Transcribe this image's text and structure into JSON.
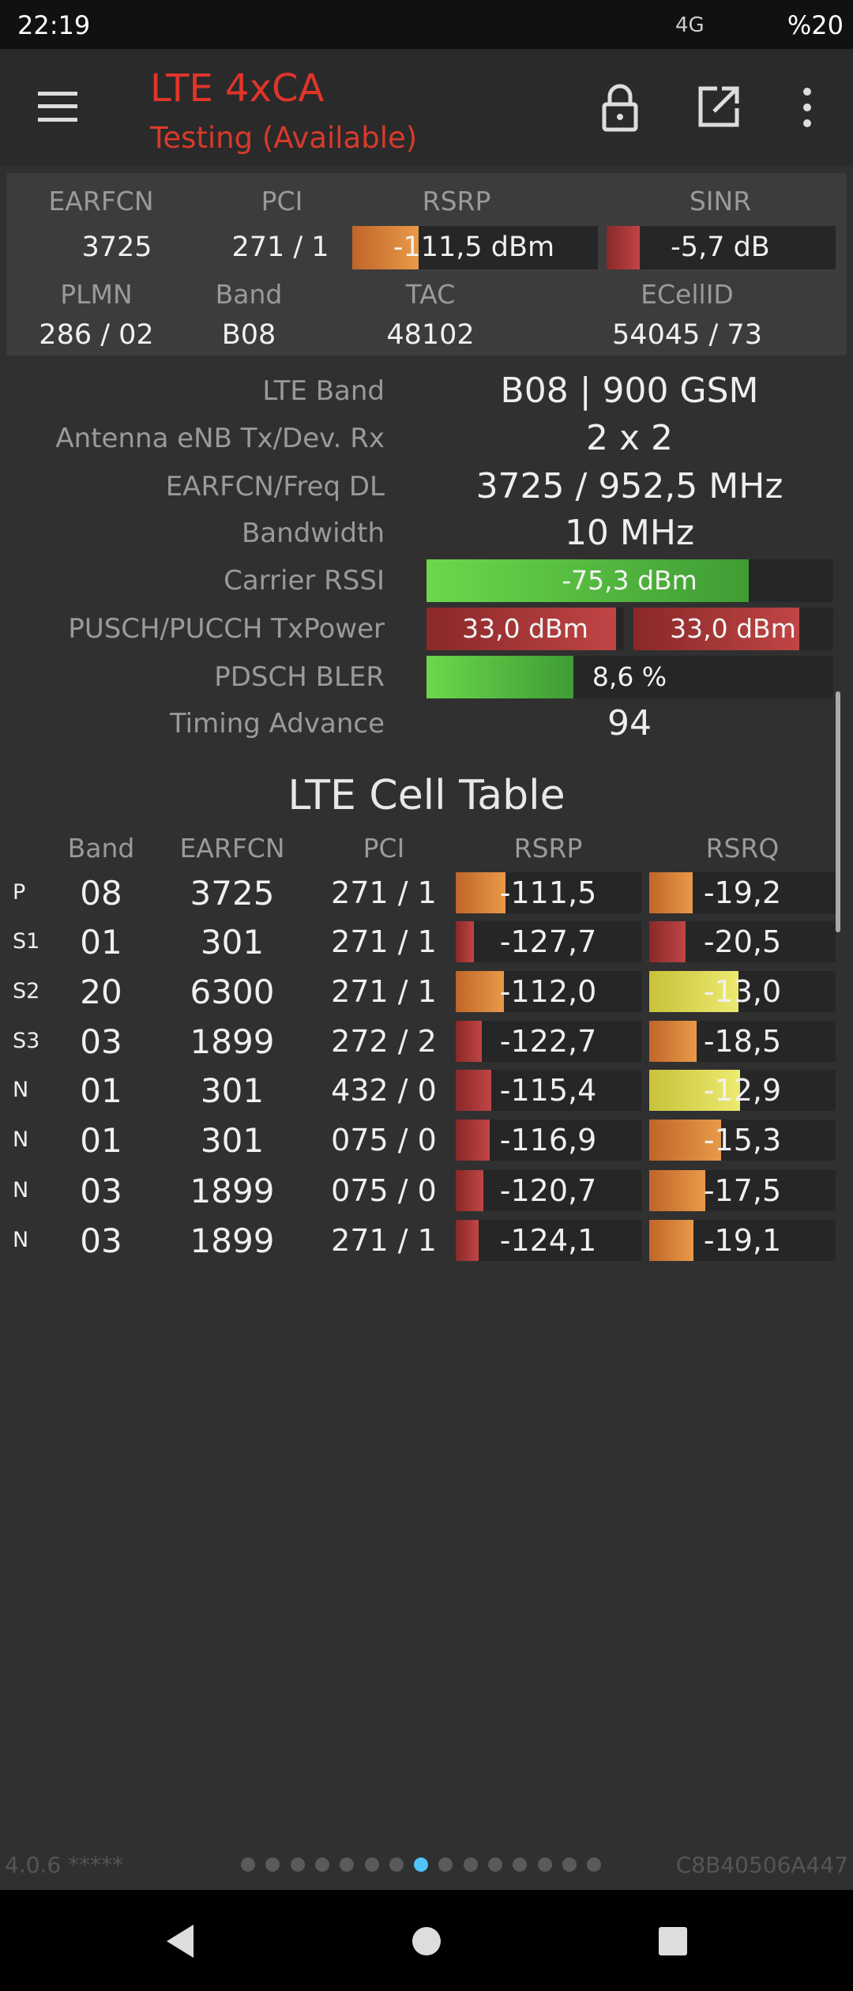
{
  "status_bar": {
    "time": "22:19",
    "network": "4G",
    "battery": "%20"
  },
  "app_bar": {
    "title": "LTE 4xCA",
    "subtitle": "Testing (Available)"
  },
  "summary": {
    "headers": [
      "EARFCN",
      "PCI",
      "RSRP",
      "SINR"
    ],
    "values": [
      "3725",
      "271 / 1",
      "-111,5 dBm",
      "-5,7 dB"
    ],
    "headers2": [
      "PLMN",
      "Band",
      "TAC",
      "ECellID"
    ],
    "values2": [
      "286 / 02",
      "B08",
      "48102",
      "54045 / 73"
    ]
  },
  "details": [
    {
      "label": "LTE Band",
      "values": [
        "B08 | 900 GSM"
      ]
    },
    {
      "label": "Antenna eNB Tx/Dev. Rx",
      "values": [
        "2 x 2"
      ]
    },
    {
      "label": "EARFCN/Freq DL",
      "values": [
        "3725 / 952,5 MHz"
      ]
    },
    {
      "label": "Bandwidth",
      "values": [
        "10 MHz"
      ]
    },
    {
      "label": "Carrier RSSI",
      "values": [
        "-75,3 dBm"
      ]
    },
    {
      "label": "PUSCH/PUCCH TxPower",
      "values": [
        "33,0 dBm",
        "33,0 dBm"
      ]
    },
    {
      "label": "PDSCH BLER",
      "values": [
        "8,6 %"
      ]
    },
    {
      "label": "Timing Advance",
      "values": [
        "94"
      ]
    }
  ],
  "cell_table": {
    "title": "LTE Cell Table",
    "columns": [
      "Band",
      "EARFCN",
      "PCI",
      "RSRP",
      "RSRQ"
    ],
    "rows": [
      [
        "P",
        "08",
        "3725",
        "271 / 1",
        "-111,5",
        "-19,2"
      ],
      [
        "S1",
        "01",
        "301",
        "271 / 1",
        "-127,7",
        "-20,5"
      ],
      [
        "S2",
        "20",
        "6300",
        "271 / 1",
        "-112,0",
        "-13,0"
      ],
      [
        "S3",
        "03",
        "1899",
        "272 / 2",
        "-122,7",
        "-18,5"
      ],
      [
        "N",
        "01",
        "301",
        "432 / 0",
        "-115,4",
        "-12,9"
      ],
      [
        "N",
        "01",
        "301",
        "075 / 0",
        "-116,9",
        "-15,3"
      ],
      [
        "N",
        "03",
        "1899",
        "075 / 0",
        "-120,7",
        "-17,5"
      ],
      [
        "N",
        "03",
        "1899",
        "271 / 1",
        "-124,1",
        "-19,1"
      ]
    ]
  },
  "footer": {
    "version": "4.0.6 *****",
    "id": "C8B40506A447"
  }
}
